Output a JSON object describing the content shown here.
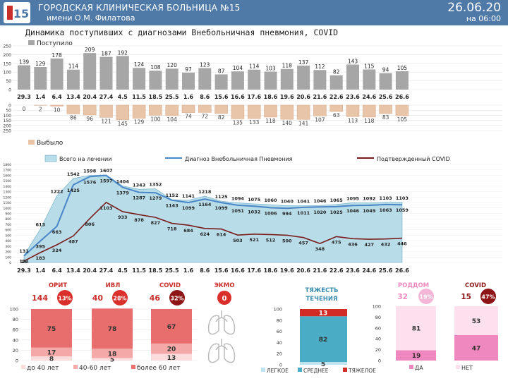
{
  "header": {
    "title": "ГОРОДСКАЯ КЛИНИЧЕСКАЯ БОЛЬНИЦА №15",
    "subtitle": "имени О.М. Филатова",
    "date": "26.06.20",
    "time": "на 06:00",
    "logo_text": "15"
  },
  "colors": {
    "header_bg": "#4f7aa8",
    "admitted_bar": "#a6a6a6",
    "discharged_bar": "#e8c4a8",
    "total_area": "#b8dce8",
    "pneumonia_line": "#4a86c8",
    "covid_line": "#7a1c1c",
    "severity_mild": "#bfe3ef",
    "severity_mid": "#4bacc6",
    "severity_severe": "#d22b26",
    "age_dark": "#e86e6e",
    "age_mid": "#f4a8a8",
    "age_light": "#fbdcdc",
    "pink_dark": "#f088c0",
    "pink_light": "#fde0ee",
    "badge_red": "#d9302c",
    "badge_dark": "#8e1515"
  },
  "chart_data": [
    {
      "type": "bar",
      "title": "Динамика поступивших с диагнозами Внебольничная пневмония, COVID",
      "legend": "Поступило",
      "categories": [
        "29.3",
        "1.4",
        "6.4",
        "13.4",
        "20.4",
        "27.4",
        "4.5",
        "11.5",
        "18.5",
        "25.5",
        "1.6",
        "8.6",
        "15.6",
        "16.6",
        "17.6",
        "18.6",
        "19.6",
        "20.6",
        "21.6",
        "22.6",
        "23.6",
        "24.6",
        "25.6",
        "26.6"
      ],
      "values": [
        139,
        129,
        178,
        114,
        209,
        187,
        192,
        124,
        108,
        120,
        97,
        123,
        87,
        104,
        114,
        103,
        118,
        137,
        112,
        82,
        143,
        115,
        94,
        105
      ],
      "ylim": [
        0,
        250
      ],
      "yticks": [
        0,
        50,
        100,
        150,
        200,
        250
      ]
    },
    {
      "type": "bar",
      "legend": "Выбыло",
      "categories": [
        "29.3",
        "1.4",
        "6.4",
        "13.4",
        "20.4",
        "27.4",
        "4.5",
        "11.5",
        "18.5",
        "25.5",
        "1.6",
        "8.6",
        "15.6",
        "16.6",
        "17.6",
        "18.6",
        "19.6",
        "20.6",
        "21.6",
        "22.6",
        "23.6",
        "24.6",
        "25.6",
        "26.6"
      ],
      "values": [
        0,
        2,
        10,
        86,
        96,
        121,
        145,
        129,
        100,
        104,
        74,
        72,
        82,
        135,
        133,
        118,
        140,
        141,
        107,
        63,
        113,
        118,
        83,
        105
      ],
      "ylim": [
        0,
        250
      ],
      "yticks": [
        0,
        50,
        100,
        150,
        200,
        250
      ]
    },
    {
      "type": "line",
      "x": [
        "29.3",
        "1.4",
        "6.4",
        "13.4",
        "20.4",
        "27.4",
        "4.5",
        "11.5",
        "18.5",
        "25.5",
        "1.6",
        "8.6",
        "15.6",
        "16.6",
        "17.6",
        "18.6",
        "19.6",
        "20.6",
        "21.6",
        "22.6",
        "23.6",
        "24.6",
        "25.6",
        "26.6"
      ],
      "series": [
        {
          "name": "Всего на лечении",
          "kind": "area",
          "values": [
            131,
            613,
            1222,
            1542,
            1598,
            1607,
            1404,
            1343,
            1352,
            1152,
            1141,
            1218,
            1125,
            1094,
            1075,
            1060,
            1040,
            1041,
            1046,
            1065,
            1095,
            1092,
            1103,
            1103
          ]
        },
        {
          "name": "Диагноз Внебольничная Пневмония",
          "kind": "line",
          "values": [
            121,
            395,
            663,
            1425,
            1576,
            1597,
            1379,
            1287,
            1279,
            1143,
            1099,
            1164,
            1099,
            1051,
            1032,
            1006,
            994,
            1011,
            1020,
            1025,
            1046,
            1049,
            1063,
            1059
          ]
        },
        {
          "name": "Подтвержденный COVID",
          "kind": "line",
          "values": [
            25,
            183,
            324,
            487,
            806,
            1103,
            933,
            878,
            827,
            718,
            684,
            624,
            614,
            503,
            521,
            512,
            500,
            457,
            348,
            475,
            436,
            427,
            432,
            446
          ]
        }
      ],
      "ylim": [
        0,
        1800
      ],
      "yticks": [
        0,
        100,
        200,
        300,
        400,
        500,
        600,
        700,
        800,
        900,
        1000,
        1100,
        1200,
        1300,
        1400,
        1500,
        1600,
        1700,
        1800
      ]
    }
  ],
  "stats": [
    {
      "label": "ОРИТ",
      "value": "144",
      "pct": "13%"
    },
    {
      "label": "ИВЛ",
      "value": "40",
      "pct": "28%"
    },
    {
      "label": "COVID",
      "value": "46",
      "pct": "32%"
    },
    {
      "label": "ЭКМО",
      "value": "0",
      "pct": ""
    }
  ],
  "age_bars": {
    "yticks": [
      0,
      20,
      40,
      60,
      80,
      100
    ],
    "groups": [
      {
        "name": "ОРИТ",
        "segments": [
          8,
          17,
          75
        ]
      },
      {
        "name": "ИВЛ",
        "segments": [
          5,
          18,
          78
        ]
      },
      {
        "name": "COVID",
        "segments": [
          13,
          20,
          67
        ]
      }
    ],
    "legend": [
      "до 40 лет",
      "40-60 лет",
      "более 60 лет"
    ]
  },
  "severity": {
    "title_line1": "ТЯЖЕСТЬ",
    "title_line2": "ТЕЧЕНИЯ",
    "yticks": [
      0,
      20,
      40,
      60,
      80,
      100
    ],
    "segments": [
      5,
      82,
      13
    ],
    "legend": [
      "ЛЕГКОЕ",
      "СРЕДНЕЕ",
      "ТЯЖЕЛОЕ"
    ]
  },
  "birth": {
    "title": "РОДДОМ",
    "value": "32",
    "pct": "19%",
    "yticks": [
      0,
      20,
      40,
      60,
      80,
      100
    ],
    "segments": [
      19,
      81
    ]
  },
  "covid_confirmed": {
    "title": "COVID",
    "value": "15",
    "pct": "47%",
    "segments": [
      47,
      53
    ],
    "legend": [
      "ДА",
      "НЕТ"
    ]
  }
}
